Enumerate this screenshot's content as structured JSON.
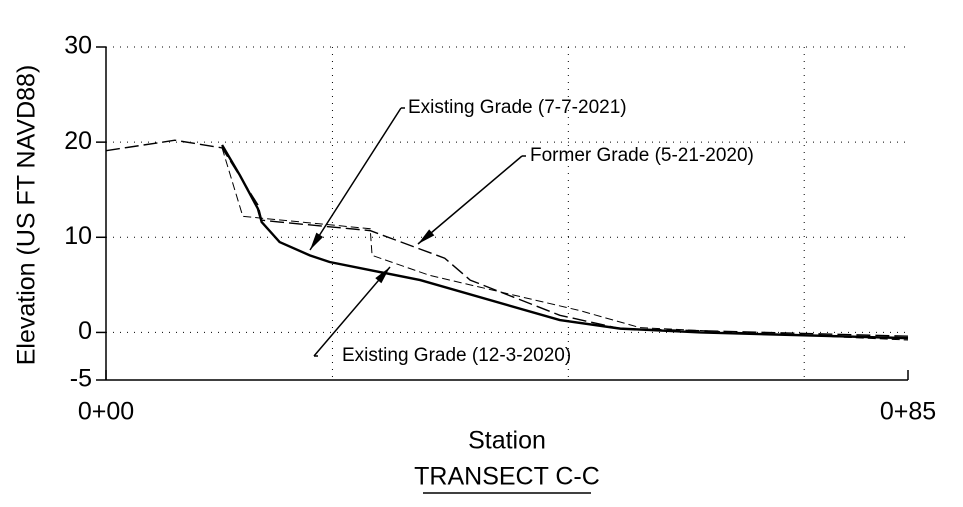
{
  "chart_data": {
    "type": "line",
    "title": "TRANSECT C-C",
    "xlabel": "Station",
    "ylabel": "Elevation (US FT NAVD88)",
    "xlim": [
      0,
      85
    ],
    "xticks": [
      {
        "value": 0,
        "label": "0+00"
      },
      {
        "value": 85,
        "label": "0+85"
      }
    ],
    "xgrid": [
      24,
      49,
      74
    ],
    "ylim": [
      -5,
      30
    ],
    "yticks": [
      -5,
      0,
      10,
      20,
      30
    ],
    "grid": true,
    "series": [
      {
        "name": "Existing Grade (7-7-2021)",
        "color": "#000000",
        "style": "solid",
        "x": [
          12.3,
          14.2,
          16.1,
          16.5,
          18.4,
          21.6,
          23.7,
          33.3,
          48.1,
          54.5,
          63.0,
          85
        ],
        "values": [
          19.7,
          16.5,
          13.0,
          11.6,
          9.5,
          8.1,
          7.4,
          5.5,
          1.3,
          0.4,
          0.0,
          -0.6
        ]
      },
      {
        "name": "Former Grade (5-21-2020)",
        "color": "#000000",
        "style": "long-dash",
        "x": [
          0,
          7.3,
          12.3,
          16.1,
          16.5,
          18.4,
          28.0,
          35.9,
          38.6,
          48.1,
          54.5,
          85
        ],
        "values": [
          19.1,
          20.2,
          19.4,
          13.4,
          11.8,
          11.6,
          10.7,
          7.8,
          5.5,
          1.8,
          0.4,
          -0.4
        ]
      },
      {
        "name": "Existing Grade (12-3-2020)",
        "color": "#000000",
        "style": "short-dash",
        "x": [
          12.3,
          14.5,
          28.0,
          28.2,
          34.3,
          50.2,
          56.6,
          73.6,
          85
        ],
        "values": [
          19.4,
          12.2,
          10.9,
          8.1,
          6.0,
          2.3,
          0.5,
          -0.3,
          -0.8
        ]
      }
    ]
  }
}
